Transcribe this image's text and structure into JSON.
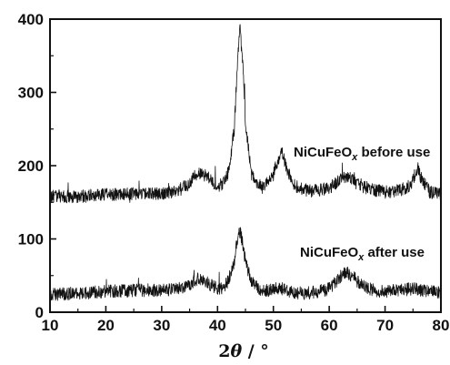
{
  "chart_data": {
    "type": "line",
    "title": "",
    "xlabel": {
      "prefix": "2",
      "symbol": "θ",
      "suffix": " / °"
    },
    "ylabel": "",
    "xlim": [
      10,
      80
    ],
    "ylim": [
      0,
      400
    ],
    "xticks": [
      "10",
      "20",
      "30",
      "40",
      "50",
      "60",
      "70",
      "80"
    ],
    "yticks": [
      "0",
      "100",
      "200",
      "300",
      "400"
    ],
    "grid": false,
    "series_color": "#111111",
    "series": [
      {
        "name": "NiCuFeOx before use",
        "label": {
          "base": "NiCuFeO",
          "sub": "x",
          "rest": " before use"
        },
        "noise_amp": 9,
        "x": [
          10,
          15,
          20,
          25,
          30,
          33,
          35,
          36,
          37,
          38,
          39,
          40,
          41,
          42,
          43,
          43.5,
          44,
          44.5,
          45,
          46,
          47,
          48,
          49,
          50,
          51,
          51.6,
          52,
          53,
          54,
          56,
          58,
          60,
          62,
          63,
          64,
          66,
          68,
          70,
          72,
          74,
          75,
          75.8,
          76.5,
          78,
          80
        ],
        "y": [
          158,
          158,
          160,
          162,
          162,
          166,
          176,
          186,
          190,
          186,
          178,
          172,
          176,
          192,
          250,
          330,
          390,
          340,
          260,
          190,
          176,
          170,
          176,
          188,
          212,
          220,
          206,
          184,
          172,
          166,
          166,
          170,
          180,
          186,
          182,
          172,
          166,
          164,
          166,
          170,
          180,
          198,
          182,
          164,
          160
        ]
      },
      {
        "name": "NiCuFeOx after use",
        "label": {
          "base": "NiCuFeO",
          "sub": "x",
          "rest": " after use"
        },
        "noise_amp": 9,
        "x": [
          10,
          15,
          20,
          25,
          30,
          33,
          35,
          36,
          37,
          38,
          39,
          40,
          41,
          42,
          43,
          43.5,
          44,
          44.5,
          45,
          46,
          47,
          48,
          50,
          51,
          52,
          54,
          56,
          58,
          60,
          62,
          63,
          64,
          66,
          68,
          70,
          72,
          75,
          78,
          80
        ],
        "y": [
          24,
          26,
          28,
          30,
          30,
          32,
          38,
          44,
          46,
          42,
          36,
          30,
          32,
          44,
          70,
          98,
          110,
          96,
          70,
          44,
          34,
          30,
          30,
          34,
          30,
          26,
          26,
          28,
          32,
          48,
          56,
          50,
          36,
          30,
          28,
          30,
          32,
          28,
          26
        ]
      }
    ]
  }
}
